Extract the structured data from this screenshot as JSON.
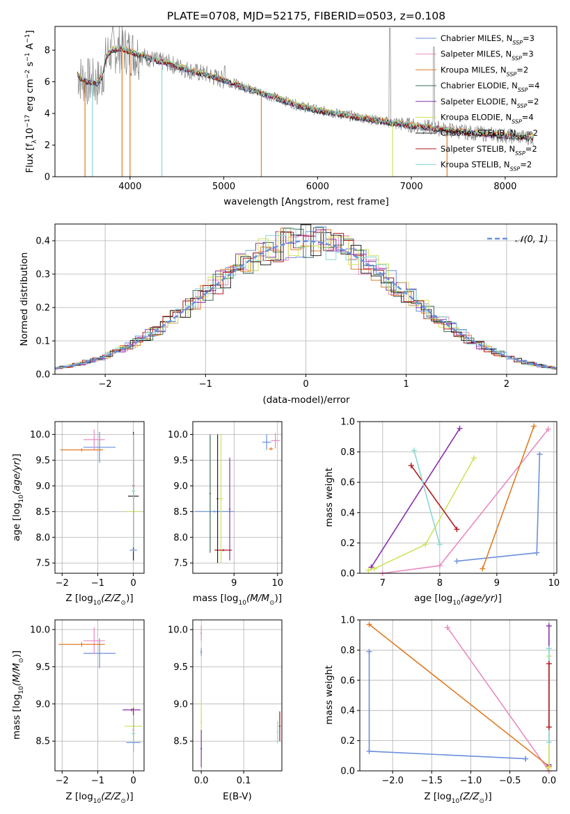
{
  "title": "PLATE=0708, MJD=52175, FIBERID=0503, z=0.108",
  "colors": {
    "Chabrier MILES": "#6a8fdc",
    "Salpeter MILES": "#e88ac0",
    "Kroupa MILES": "#e07b22",
    "Chabrier ELODIE": "#3d6b58",
    "Salpeter ELODIE": "#8a2fa8",
    "Kroupa ELODIE": "#cfe35e",
    "Chabrier STELIB": "#222222",
    "Salpeter STELIB": "#b0191c",
    "Kroupa STELIB": "#8ad6d2",
    "data": "#808080",
    "normal": "#6a8fdc"
  },
  "legend": [
    {
      "name": "Chabrier MILES",
      "label": "Chabrier MILES, N",
      "sub": "SSP",
      "tail": "=3"
    },
    {
      "name": "Salpeter MILES",
      "label": "Salpeter MILES, N",
      "sub": "SSP",
      "tail": "=3"
    },
    {
      "name": "Kroupa MILES",
      "label": "Kroupa MILES, N",
      "sub": "SSP",
      "tail": "=2"
    },
    {
      "name": "Chabrier ELODIE",
      "label": "Chabrier ELODIE, N",
      "sub": "SSP",
      "tail": "=4"
    },
    {
      "name": "Salpeter ELODIE",
      "label": "Salpeter ELODIE, N",
      "sub": "SSP",
      "tail": "=2"
    },
    {
      "name": "Kroupa ELODIE",
      "label": "Kroupa ELODIE, N",
      "sub": "SSP",
      "tail": "=4"
    },
    {
      "name": "Chabrier STELIB",
      "label": "Chabrier STELIB, N",
      "sub": "SSP",
      "tail": "=2"
    },
    {
      "name": "Salpeter STELIB",
      "label": "Salpeter STELIB, N",
      "sub": "SSP",
      "tail": "=2"
    },
    {
      "name": "Kroupa STELIB",
      "label": "Kroupa STELIB, N",
      "sub": "SSP",
      "tail": "=2"
    }
  ],
  "chart_data": [
    {
      "type": "line",
      "title": "PLATE=0708, MJD=52175, FIBERID=0503, z=0.108",
      "xlabel": "wavelength [Angstrom, rest frame]",
      "ylabel": "Flux [f",
      "xlim": [
        3200,
        8550
      ],
      "ylim": [
        0,
        9.5
      ],
      "xticks": [
        "4000",
        "5000",
        "6000",
        "7000",
        "8000"
      ],
      "yticks": [
        "0",
        "2",
        "4",
        "6",
        "8"
      ],
      "legend_position": "top-right",
      "continuum": {
        "x": [
          3440,
          3480,
          3550,
          3650,
          3700,
          3750,
          3800,
          3900,
          4000,
          4100,
          4200,
          4300,
          4400,
          4500,
          4600,
          4700,
          4800,
          4900,
          5000,
          5200,
          5400,
          5600,
          5800,
          6000,
          6200,
          6400,
          6600,
          6800,
          7000,
          7200,
          7400,
          7600,
          7800,
          8000,
          8200,
          8300
        ],
        "y": [
          6.5,
          6.2,
          6.0,
          5.9,
          6.3,
          7.6,
          8.0,
          8.1,
          7.9,
          7.7,
          7.5,
          7.3,
          7.2,
          7.0,
          6.8,
          6.6,
          6.5,
          6.3,
          6.1,
          5.7,
          5.3,
          4.9,
          4.5,
          4.2,
          4.0,
          3.8,
          3.6,
          3.4,
          3.25,
          3.1,
          2.95,
          2.8,
          2.7,
          2.6,
          2.5,
          2.45
        ]
      }
    },
    {
      "type": "line",
      "xlabel": "(data-model)/error",
      "ylabel": "Normed distribution",
      "xlim": [
        -2.5,
        2.5
      ],
      "ylim": [
        0,
        0.45
      ],
      "xticks": [
        "−2",
        "−1",
        "0",
        "1",
        "2"
      ],
      "yticks": [
        "0.0",
        "0.1",
        "0.2",
        "0.3",
        "0.4"
      ],
      "legend": "𝒩(0, 1)",
      "legend_position": "top-right",
      "normal": {
        "mean": 0,
        "sigma": 1
      },
      "bin_width": 0.1
    },
    {
      "type": "scatter",
      "xlabel": "Z [log",
      "ylabel": "age  [log",
      "xlim": [
        -2.2,
        0.3
      ],
      "ylim": [
        7.3,
        10.25
      ],
      "xticks": [
        "−2",
        "−1",
        "0"
      ],
      "yticks": [
        "7.5",
        "8.0",
        "8.5",
        "9.0",
        "9.5",
        "10.0"
      ],
      "errorbars": [
        {
          "model": "Chabrier MILES",
          "x": -0.95,
          "xerr": 0.45,
          "y": 9.75,
          "yerr": 0.3
        },
        {
          "model": "Salpeter MILES",
          "x": -1.1,
          "xerr": 0.3,
          "y": 9.9,
          "yerr": 0.2
        },
        {
          "model": "Kroupa MILES",
          "x": -1.45,
          "xerr": 0.6,
          "y": 9.7,
          "yerr": 0.03
        },
        {
          "model": "Kroupa ELODIE",
          "x": 0.0,
          "xerr": 0.2,
          "y": 8.5,
          "yerr": 1.0
        },
        {
          "model": "Chabrier STELIB",
          "x": 0.0,
          "xerr": 0.15,
          "y": 8.8,
          "yerr": 1.25
        },
        {
          "model": "Salpeter STELIB",
          "x": 0.0,
          "xerr": 0.03,
          "y": 9.0,
          "yerr": 1.0
        },
        {
          "model": "Kroupa STELIB",
          "x": 0.0,
          "xerr": 0.05,
          "y": 8.9,
          "yerr": 1.1
        },
        {
          "model": "Chabrier MILES",
          "x": 0.0,
          "xerr": 0.1,
          "y": 7.75,
          "yerr": 0.02
        }
      ]
    },
    {
      "type": "scatter",
      "xlabel": "mass [log",
      "ylabel": "",
      "xlim": [
        8.05,
        10.1
      ],
      "ylim": [
        7.3,
        10.25
      ],
      "xticks": [
        "9",
        "10"
      ],
      "yticks": [
        "7.5",
        "8.0",
        "8.5",
        "9.0",
        "9.5",
        "10.0"
      ],
      "errorbars": [
        {
          "model": "Chabrier MILES",
          "x": 8.55,
          "xerr": 0.45,
          "y": 8.5,
          "yerr": 0.02
        },
        {
          "model": "Chabrier ELODIE",
          "x": 8.45,
          "xerr": 0.02,
          "y": 8.85,
          "yerr": 1.15
        },
        {
          "model": "Kroupa ELODIE",
          "x": 8.7,
          "xerr": 0.05,
          "y": 8.75,
          "yerr": 1.25
        },
        {
          "model": "Salpeter ELODIE",
          "x": 8.9,
          "xerr": 0.02,
          "y": 8.55,
          "yerr": 1.0
        },
        {
          "model": "Salpeter STELIB",
          "x": 8.75,
          "xerr": 0.2,
          "y": 7.75,
          "yerr": 0.02
        },
        {
          "model": "Chabrier STELIB",
          "x": 8.62,
          "xerr": 0.02,
          "y": 8.75,
          "yerr": 1.25
        },
        {
          "model": "Chabrier MILES",
          "x": 9.75,
          "xerr": 0.1,
          "y": 9.85,
          "yerr": 0.15
        },
        {
          "model": "Salpeter MILES",
          "x": 9.95,
          "xerr": 0.1,
          "y": 9.88,
          "yerr": 0.15
        },
        {
          "model": "Kroupa MILES",
          "x": 9.85,
          "xerr": 0.05,
          "y": 9.72,
          "yerr": 0.03
        }
      ]
    },
    {
      "type": "line",
      "xlabel": "age  [log",
      "ylabel": "mass weight",
      "xlim": [
        6.6,
        10.05
      ],
      "ylim": [
        0,
        1
      ],
      "xticks": [
        "7",
        "8",
        "9",
        "10"
      ],
      "yticks": [
        "0.0",
        "0.2",
        "0.4",
        "0.6",
        "0.8",
        "1.0"
      ],
      "series": [
        {
          "model": "Chabrier MILES",
          "x": [
            8.3,
            9.7,
            9.75
          ],
          "y": [
            0.08,
            0.135,
            0.785
          ]
        },
        {
          "model": "Salpeter MILES",
          "x": [
            7.0,
            8.0,
            9.9
          ],
          "y": [
            0.0,
            0.05,
            0.95
          ]
        },
        {
          "model": "Kroupa MILES",
          "x": [
            8.75,
            9.65
          ],
          "y": [
            0.03,
            0.97
          ]
        },
        {
          "model": "Salpeter ELODIE",
          "x": [
            6.8,
            8.35
          ],
          "y": [
            0.04,
            0.955
          ]
        },
        {
          "model": "Kroupa ELODIE",
          "x": [
            6.75,
            6.85,
            7.75,
            8.6
          ],
          "y": [
            0.02,
            0.03,
            0.19,
            0.76
          ]
        },
        {
          "model": "Salpeter STELIB",
          "x": [
            7.5,
            8.3
          ],
          "y": [
            0.71,
            0.29
          ]
        },
        {
          "model": "Kroupa STELIB",
          "x": [
            7.55,
            8.0
          ],
          "y": [
            0.81,
            0.19
          ]
        }
      ]
    },
    {
      "type": "scatter",
      "xlabel": "Z [log",
      "ylabel": "mass [log",
      "xlim": [
        -2.2,
        0.3
      ],
      "ylim": [
        8.1,
        10.13
      ],
      "xticks": [
        "−2",
        "−1",
        "0"
      ],
      "yticks": [
        "8.5",
        "9.0",
        "9.5",
        "10.0"
      ],
      "errorbars": [
        {
          "model": "Chabrier MILES",
          "x": -0.95,
          "xerr": 0.45,
          "y": 9.68,
          "yerr": 0.2
        },
        {
          "model": "Salpeter MILES",
          "x": -1.1,
          "xerr": 0.3,
          "y": 9.85,
          "yerr": 0.18
        },
        {
          "model": "Kroupa MILES",
          "x": -1.45,
          "xerr": 0.65,
          "y": 9.8,
          "yerr": 0.03
        },
        {
          "model": "Kroupa ELODIE",
          "x": 0.0,
          "xerr": 0.25,
          "y": 8.7,
          "yerr": 0.35
        },
        {
          "model": "Salpeter ELODIE",
          "x": -0.05,
          "xerr": 0.25,
          "y": 8.92,
          "yerr": 0.02
        },
        {
          "model": "Chabrier MILES",
          "x": 0.0,
          "xerr": 0.2,
          "y": 8.48,
          "yerr": 0.02
        },
        {
          "model": "Salpeter STELIB",
          "x": 0.0,
          "xerr": 0.02,
          "y": 8.65,
          "yerr": 0.3
        },
        {
          "model": "Kroupa STELIB",
          "x": 0.0,
          "xerr": 0.05,
          "y": 8.6,
          "yerr": 0.25
        }
      ]
    },
    {
      "type": "scatter",
      "xlabel": "E(B-V)",
      "ylabel": "",
      "xlim": [
        -0.02,
        0.19
      ],
      "ylim": [
        8.1,
        10.13
      ],
      "xticks": [
        "0.0",
        "0.1"
      ],
      "yticks": [
        "8.5",
        "9.0",
        "9.5",
        "10.0"
      ],
      "errorbars": [
        {
          "model": "Salpeter MILES",
          "x": 0.0,
          "xerr": 0.002,
          "y": 9.95,
          "yerr": 0.1
        },
        {
          "model": "Chabrier MILES",
          "x": 0.0,
          "xerr": 0.002,
          "y": 9.7,
          "yerr": 0.05
        },
        {
          "model": "Kroupa ELODIE",
          "x": 0.0,
          "xerr": 0.002,
          "y": 8.75,
          "yerr": 0.3
        },
        {
          "model": "Salpeter ELODIE",
          "x": 0.0,
          "xerr": 0.002,
          "y": 8.4,
          "yerr": 0.25
        },
        {
          "model": "Kroupa STELIB",
          "x": 0.18,
          "xerr": 0.002,
          "y": 8.62,
          "yerr": 0.15
        },
        {
          "model": "Salpeter STELIB",
          "x": 0.185,
          "xerr": 0.002,
          "y": 8.7,
          "yerr": 0.2
        }
      ]
    },
    {
      "type": "line",
      "xlabel": "Z [log",
      "ylabel": "mass weight",
      "xlim": [
        -2.42,
        0.1
      ],
      "ylim": [
        0,
        1
      ],
      "xticks": [
        "−2.0",
        "−1.5",
        "−1.0",
        "−0.5",
        "0.0"
      ],
      "yticks": [
        "0.0",
        "0.2",
        "0.4",
        "0.6",
        "0.8",
        "1.0"
      ],
      "series": [
        {
          "model": "Chabrier MILES",
          "x": [
            -2.3,
            -2.3,
            -0.3,
            -0.3
          ],
          "y": [
            0.79,
            0.13,
            0.08,
            0.08
          ]
        },
        {
          "model": "Salpeter MILES",
          "x": [
            -1.3,
            0.0
          ],
          "y": [
            0.95,
            0.0
          ]
        },
        {
          "model": "Kroupa MILES",
          "x": [
            -2.3,
            0.0
          ],
          "y": [
            0.97,
            0.03
          ]
        },
        {
          "model": "Salpeter ELODIE",
          "x": [
            0.0,
            0.0
          ],
          "y": [
            0.96,
            0.04
          ]
        },
        {
          "model": "Kroupa ELODIE",
          "x": [
            0.0,
            0.0
          ],
          "y": [
            0.76,
            0.02
          ]
        },
        {
          "model": "Kroupa STELIB",
          "x": [
            0.0,
            0.0
          ],
          "y": [
            0.81,
            0.19
          ]
        },
        {
          "model": "Salpeter STELIB",
          "x": [
            0.0,
            0.0
          ],
          "y": [
            0.71,
            0.29
          ]
        }
      ]
    }
  ]
}
